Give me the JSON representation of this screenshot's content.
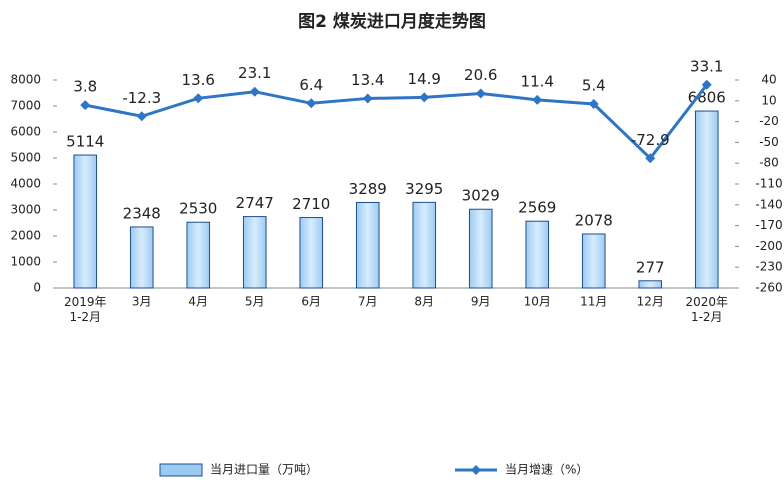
{
  "chart_data": {
    "type": "bar-line",
    "title": "图2  煤炭进口月度走势图",
    "categories": [
      "2019年\n1-2月",
      "3月",
      "4月",
      "5月",
      "6月",
      "7月",
      "8月",
      "9月",
      "10月",
      "11月",
      "12月",
      "2020年\n1-2月"
    ],
    "series": [
      {
        "name": "当月进口量（万吨）",
        "type": "bar",
        "color": "#9ccbf2",
        "values": [
          5114,
          2348,
          2530,
          2747,
          2710,
          3289,
          3295,
          3029,
          2569,
          2078,
          277,
          6806
        ]
      },
      {
        "name": "当月增速（%）",
        "type": "line",
        "axis": "y2",
        "color": "#2e75c6",
        "values": [
          3.8,
          -12.3,
          13.6,
          23.1,
          6.4,
          13.4,
          14.9,
          20.6,
          11.4,
          5.4,
          -72.9,
          33.1
        ]
      }
    ],
    "ylim": [
      0,
      8000
    ],
    "yticks": [
      0,
      1000,
      2000,
      3000,
      4000,
      5000,
      6000,
      7000,
      8000
    ],
    "y2lim": [
      -260,
      40
    ],
    "y2ticks": [
      40,
      10,
      -20,
      -50,
      -80,
      -110,
      -140,
      -170,
      -200,
      -230,
      -260
    ],
    "legend": "bottom"
  }
}
